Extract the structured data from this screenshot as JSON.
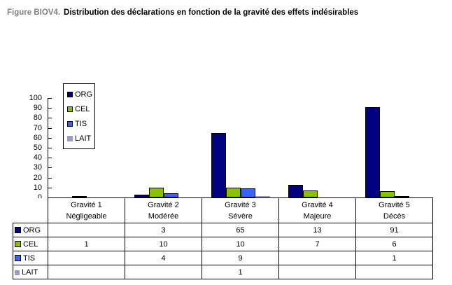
{
  "title": {
    "prefix": "Figure BIOV4.",
    "main": "Distribution des déclarations en fonction de la gravité des effets indésirables"
  },
  "colors": {
    "title_prefix": "#808080",
    "axis": "#000000",
    "background": "#ffffff"
  },
  "chart_data": {
    "type": "bar",
    "title": "Distribution des déclarations en fonction de la gravité des effets indésirables",
    "xlabel": "",
    "ylabel": "",
    "ylim": [
      0,
      100
    ],
    "ytick_step": 10,
    "grid": false,
    "legend_position": "top-left-inside",
    "data_table_shown": true,
    "categories": [
      {
        "line1": "Gravité 1",
        "line2": "Négligeable"
      },
      {
        "line1": "Gravité 2",
        "line2": "Modérée"
      },
      {
        "line1": "Gravité 3",
        "line2": "Sévère"
      },
      {
        "line1": "Gravité 4",
        "line2": "Majeure"
      },
      {
        "line1": "Gravité 5",
        "line2": "Décès"
      }
    ],
    "series": [
      {
        "name": "ORG",
        "color": "#000080",
        "bordered": true,
        "values": [
          null,
          3,
          65,
          13,
          91
        ]
      },
      {
        "name": "CEL",
        "color": "#89C000",
        "bordered": true,
        "values": [
          1,
          10,
          10,
          7,
          6
        ]
      },
      {
        "name": "TIS",
        "color": "#3366FF",
        "bordered": true,
        "values": [
          null,
          4,
          9,
          null,
          1
        ]
      },
      {
        "name": "LAIT",
        "color": "#9999CC",
        "bordered": false,
        "values": [
          null,
          null,
          1,
          null,
          null
        ]
      }
    ]
  }
}
